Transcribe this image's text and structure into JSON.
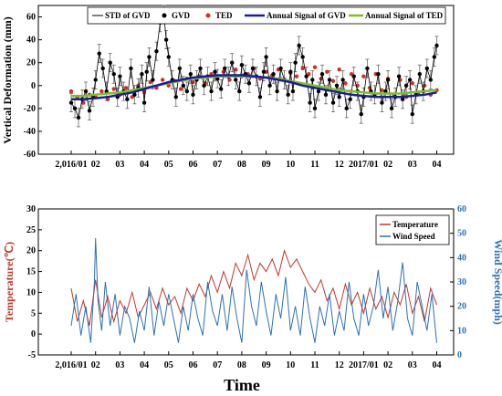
{
  "chart_data": [
    {
      "type": "line",
      "ylabel": "Vertical Deformation (mm)",
      "ylim": [
        -60,
        70
      ],
      "yticks": [
        "-60",
        "-40",
        "-20",
        "0",
        "20",
        "40",
        "60"
      ],
      "x_tick_labels": [
        "2,016/01",
        "02",
        "03",
        "04",
        "05",
        "06",
        "07",
        "08",
        "09",
        "10",
        "11",
        "12",
        "2017/01",
        "02",
        "03",
        "04"
      ],
      "legend": {
        "placement": "top",
        "entries": [
          "STD of GVD",
          "GVD",
          "TED",
          "Annual Signal of GVD",
          "Annual Signal of TED"
        ]
      },
      "colors": {
        "gvd": "#000000",
        "ted": "#d03020",
        "annual_gvd": "#1a1aa8",
        "annual_ted": "#7cc21c"
      },
      "series": [
        {
          "name": "GVD",
          "x_month": [
            0,
            0.15,
            0.3,
            0.45,
            0.6,
            0.75,
            0.9,
            1.0,
            1.15,
            1.3,
            1.45,
            1.6,
            1.75,
            1.9,
            2.0,
            2.15,
            2.3,
            2.45,
            2.6,
            2.75,
            2.9,
            3.0,
            3.1,
            3.2,
            3.35,
            3.5,
            3.65,
            3.8,
            3.9,
            4.0,
            4.15,
            4.3,
            4.45,
            4.6,
            4.75,
            4.9,
            5.0,
            5.15,
            5.3,
            5.45,
            5.6,
            5.75,
            5.9,
            6.0,
            6.15,
            6.3,
            6.45,
            6.6,
            6.75,
            6.9,
            7.0,
            7.15,
            7.3,
            7.45,
            7.6,
            7.75,
            7.9,
            8.0,
            8.15,
            8.3,
            8.45,
            8.6,
            8.75,
            8.9,
            9.0,
            9.1,
            9.2,
            9.35,
            9.5,
            9.65,
            9.8,
            9.9,
            10.0,
            10.15,
            10.3,
            10.45,
            10.6,
            10.75,
            10.9,
            11.0,
            11.15,
            11.3,
            11.45,
            11.6,
            11.75,
            11.9,
            12.0,
            12.15,
            12.3,
            12.45,
            12.6,
            12.75,
            12.9,
            13.0,
            13.15,
            13.3,
            13.45,
            13.6,
            13.75,
            13.9,
            14.0,
            14.15,
            14.3,
            14.45,
            14.6,
            14.75,
            14.9,
            15.0
          ],
          "values": [
            -15,
            -20,
            -28,
            -12,
            -5,
            -22,
            -10,
            5,
            28,
            15,
            -5,
            20,
            10,
            -10,
            8,
            -5,
            -12,
            15,
            -8,
            -2,
            10,
            -15,
            12,
            25,
            5,
            30,
            55,
            62,
            40,
            25,
            5,
            -10,
            15,
            0,
            -5,
            10,
            -8,
            5,
            15,
            0,
            8,
            -5,
            12,
            6,
            -3,
            15,
            8,
            20,
            5,
            -5,
            18,
            10,
            2,
            15,
            8,
            -10,
            12,
            25,
            0,
            10,
            -5,
            15,
            5,
            -8,
            12,
            -5,
            20,
            35,
            25,
            8,
            -15,
            5,
            -20,
            -5,
            10,
            -8,
            5,
            -15,
            0,
            -10,
            5,
            -20,
            -12,
            8,
            -5,
            -25,
            -10,
            15,
            -5,
            -8,
            10,
            -15,
            -5,
            5,
            -20,
            -10,
            8,
            -12,
            0,
            5,
            -25,
            -8,
            10,
            -5,
            15,
            5,
            25,
            35
          ]
        },
        {
          "name": "TED",
          "x_month": [
            0,
            0.25,
            0.5,
            0.75,
            1.0,
            1.25,
            1.5,
            1.75,
            2.0,
            2.25,
            2.5,
            2.75,
            3.0,
            3.25,
            3.5,
            3.75,
            4.0,
            4.25,
            4.5,
            4.75,
            5.0,
            5.25,
            5.5,
            5.75,
            6.0,
            6.25,
            6.5,
            6.75,
            7.0,
            7.25,
            7.5,
            7.75,
            8.0,
            8.25,
            8.5,
            8.75,
            9.0,
            9.25,
            9.5,
            9.75,
            10.0,
            10.25,
            10.5,
            10.75,
            11.0,
            11.25,
            11.5,
            11.75,
            12.0,
            12.25,
            12.5,
            12.75,
            13.0,
            13.25,
            13.5,
            13.75,
            14.0,
            14.25,
            14.5,
            14.75,
            15.0
          ],
          "values": [
            -5,
            -10,
            -15,
            -8,
            -10,
            -5,
            -12,
            -3,
            -8,
            -2,
            -10,
            0,
            -5,
            3,
            -2,
            5,
            0,
            4,
            -3,
            6,
            3,
            8,
            2,
            10,
            6,
            12,
            5,
            14,
            8,
            10,
            15,
            6,
            12,
            9,
            14,
            5,
            11,
            8,
            15,
            10,
            16,
            6,
            12,
            4,
            14,
            2,
            10,
            0,
            8,
            -2,
            10,
            -4,
            6,
            -8,
            5,
            -10,
            2,
            -6,
            0,
            -8,
            -4
          ]
        },
        {
          "name": "Annual Signal of GVD",
          "x_month": [
            0,
            0.5,
            1,
            1.5,
            2,
            2.5,
            3,
            3.5,
            4,
            4.5,
            5,
            5.5,
            6,
            6.5,
            7,
            7.5,
            8,
            8.5,
            9,
            9.5,
            10,
            10.5,
            11,
            11.5,
            12,
            12.5,
            13,
            13.5,
            14,
            14.5,
            15
          ],
          "values": [
            -12,
            -12,
            -11,
            -10,
            -8,
            -6,
            -3,
            0,
            3,
            5,
            7,
            8,
            9,
            9,
            9,
            8,
            7,
            5,
            3,
            0,
            -2,
            -4,
            -6,
            -8,
            -9,
            -10,
            -10,
            -10,
            -9,
            -8,
            -6
          ]
        },
        {
          "name": "Annual Signal of TED",
          "x_month": [
            0,
            0.5,
            1,
            1.5,
            2,
            2.5,
            3,
            3.5,
            4,
            4.5,
            5,
            5.5,
            6,
            6.5,
            7,
            7.5,
            8,
            8.5,
            9,
            9.5,
            10,
            10.5,
            11,
            11.5,
            12,
            12.5,
            13,
            13.5,
            14,
            14.5,
            15
          ],
          "values": [
            -9,
            -9,
            -8,
            -7,
            -6,
            -4,
            -2,
            0,
            2,
            4,
            6,
            7,
            8,
            8,
            8,
            8,
            7,
            6,
            4,
            2,
            0,
            -2,
            -4,
            -5,
            -6,
            -7,
            -7,
            -7,
            -6,
            -5,
            -4
          ]
        }
      ]
    },
    {
      "type": "line",
      "xlabel": "Time",
      "ylabel": "Temperature(℃)",
      "ylabel_right": "Wind Speed(mph)",
      "ylim": [
        -5,
        30
      ],
      "ylim_right": [
        0,
        60
      ],
      "yticks": [
        "-5",
        "0",
        "5",
        "10",
        "15",
        "20",
        "25",
        "30"
      ],
      "yticks_right": [
        "0",
        "10",
        "20",
        "30",
        "40",
        "50",
        "60"
      ],
      "x_tick_labels": [
        "2,016/01",
        "02",
        "03",
        "04",
        "05",
        "06",
        "07",
        "08",
        "09",
        "10",
        "11",
        "12",
        "2017/01",
        "02",
        "03",
        "04"
      ],
      "legend": {
        "placement": "top-right",
        "entries": [
          "Temperature",
          "Wind Speed"
        ]
      },
      "colors": {
        "temperature": "#c0392b",
        "wind": "#2c72b8"
      },
      "series": [
        {
          "name": "Temperature",
          "x_month": [
            0,
            0.25,
            0.5,
            0.75,
            1.0,
            1.25,
            1.5,
            1.75,
            2.0,
            2.25,
            2.5,
            2.75,
            3.0,
            3.25,
            3.5,
            3.75,
            4.0,
            4.25,
            4.5,
            4.75,
            5.0,
            5.25,
            5.5,
            5.75,
            6.0,
            6.25,
            6.5,
            6.75,
            7.0,
            7.25,
            7.5,
            7.75,
            8.0,
            8.25,
            8.5,
            8.75,
            9.0,
            9.25,
            9.5,
            9.75,
            10.0,
            10.25,
            10.5,
            10.75,
            11.0,
            11.25,
            11.5,
            11.75,
            12.0,
            12.25,
            12.5,
            12.75,
            13.0,
            13.25,
            13.5,
            13.75,
            14.0,
            14.25,
            14.5,
            14.75,
            15.0
          ],
          "values": [
            11,
            3,
            8,
            2,
            13,
            4,
            9,
            3,
            8,
            5,
            10,
            4,
            7,
            10,
            6,
            11,
            7,
            9,
            5,
            11,
            8,
            12,
            9,
            14,
            10,
            15,
            11,
            17,
            14,
            19,
            13,
            17,
            15,
            18,
            14,
            20,
            16,
            18,
            15,
            12,
            10,
            13,
            8,
            11,
            6,
            12,
            7,
            10,
            5,
            11,
            6,
            9,
            4,
            10,
            7,
            12,
            5,
            9,
            3,
            11,
            7
          ]
        },
        {
          "name": "Wind Speed",
          "x_month": [
            0,
            0.2,
            0.4,
            0.6,
            0.8,
            0.95,
            1.0,
            1.1,
            1.25,
            1.4,
            1.6,
            1.8,
            2.0,
            2.2,
            2.4,
            2.6,
            2.8,
            3.0,
            3.2,
            3.4,
            3.6,
            3.8,
            4.0,
            4.2,
            4.4,
            4.6,
            4.8,
            5.0,
            5.2,
            5.4,
            5.6,
            5.8,
            6.0,
            6.2,
            6.4,
            6.6,
            6.8,
            7.0,
            7.2,
            7.4,
            7.6,
            7.8,
            8.0,
            8.2,
            8.4,
            8.6,
            8.8,
            9.0,
            9.2,
            9.4,
            9.6,
            9.8,
            10.0,
            10.2,
            10.4,
            10.6,
            10.8,
            11.0,
            11.2,
            11.4,
            11.6,
            11.8,
            12.0,
            12.2,
            12.4,
            12.6,
            12.8,
            13.0,
            13.2,
            13.4,
            13.6,
            13.8,
            14.0,
            14.2,
            14.4,
            14.6,
            14.8,
            15.0
          ],
          "values": [
            12,
            25,
            8,
            20,
            5,
            30,
            48,
            22,
            10,
            30,
            12,
            25,
            8,
            20,
            15,
            5,
            18,
            10,
            28,
            8,
            22,
            12,
            25,
            15,
            5,
            20,
            10,
            25,
            15,
            8,
            30,
            18,
            12,
            25,
            10,
            28,
            15,
            5,
            35,
            20,
            12,
            30,
            18,
            8,
            25,
            15,
            32,
            10,
            20,
            8,
            28,
            15,
            5,
            20,
            12,
            25,
            8,
            18,
            10,
            30,
            15,
            8,
            25,
            12,
            20,
            35,
            15,
            28,
            10,
            22,
            38,
            15,
            8,
            30,
            20,
            10,
            25,
            5
          ]
        }
      ]
    }
  ]
}
